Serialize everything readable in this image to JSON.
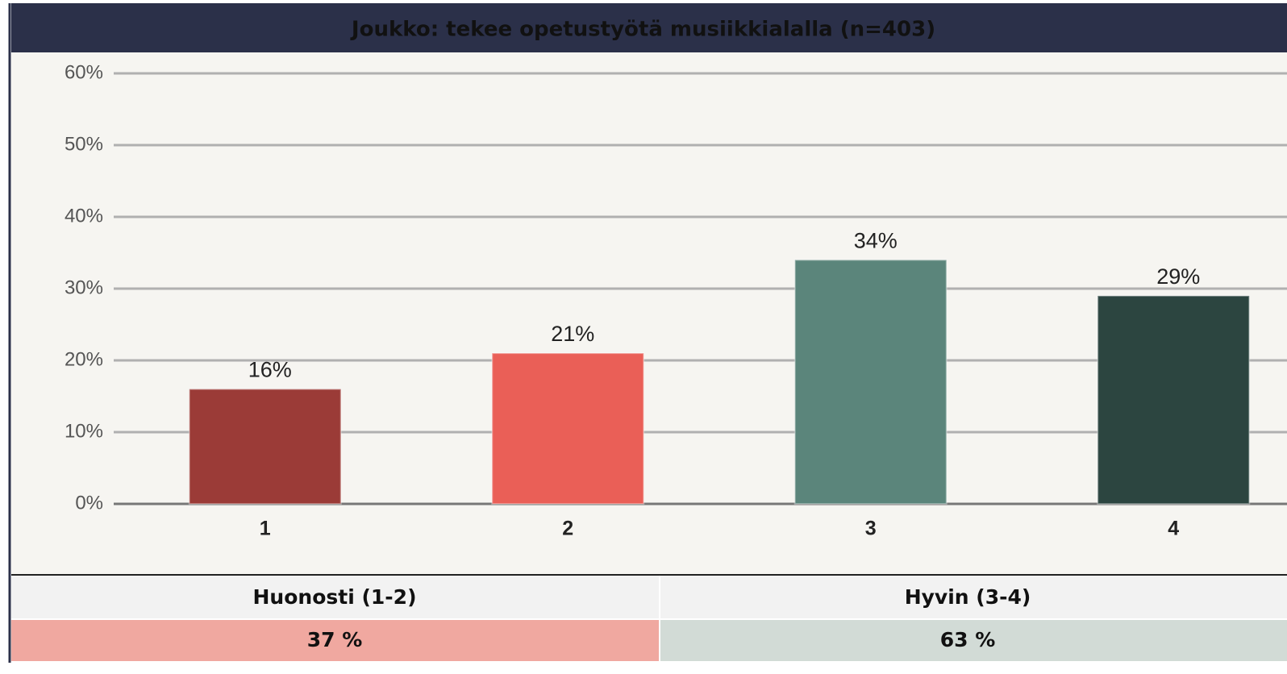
{
  "chart_data": {
    "type": "bar",
    "title": "Joukko: tekee opetustyötä musiikkialalla (n=403)",
    "categories": [
      "1",
      "2",
      "3",
      "4"
    ],
    "values": [
      16,
      21,
      34,
      29
    ],
    "value_labels": [
      "16%",
      "21%",
      "34%",
      "29%"
    ],
    "colors": [
      "#9b3b37",
      "#ea5f57",
      "#5b857b",
      "#2c4540"
    ],
    "ylim": [
      0,
      60
    ],
    "yticks": [
      {
        "value": 0,
        "label": "0%"
      },
      {
        "value": 10,
        "label": "10%"
      },
      {
        "value": 20,
        "label": "20%"
      },
      {
        "value": 30,
        "label": "30%"
      },
      {
        "value": 40,
        "label": "40%"
      },
      {
        "value": 50,
        "label": "50%"
      },
      {
        "value": 60,
        "label": "60%"
      }
    ],
    "grid": true
  },
  "summary": {
    "headers": [
      "Huonosti (1-2)",
      "Hyvin (3-4)"
    ],
    "values": [
      "37 %",
      "63 %"
    ]
  }
}
